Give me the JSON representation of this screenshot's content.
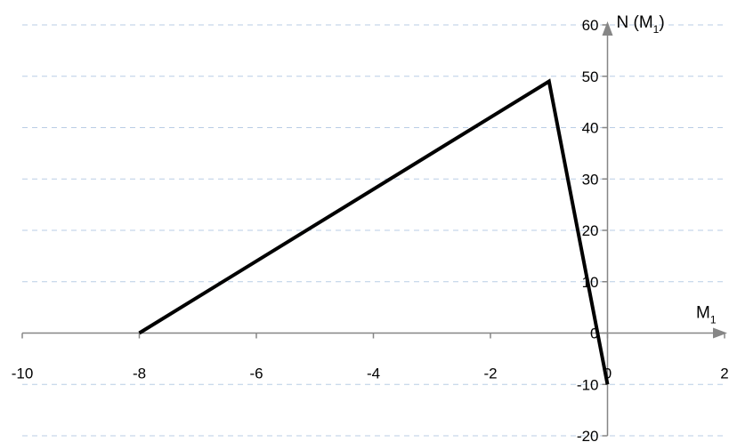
{
  "chart_data": {
    "type": "line",
    "title": "",
    "xlabel": "M",
    "xlabel_sub": "1",
    "ylabel": "N (M",
    "ylabel_sub": "1",
    "ylabel_close": ")",
    "xlim": [
      -10,
      2
    ],
    "ylim": [
      -20,
      60
    ],
    "x_ticks": [
      -10,
      -8,
      -6,
      -4,
      -2,
      0,
      2
    ],
    "y_ticks": [
      -20,
      -10,
      0,
      10,
      20,
      30,
      40,
      50,
      60
    ],
    "grid": "horizontal dashed",
    "series": [
      {
        "color": "#000000",
        "x": [
          -8,
          -1,
          0
        ],
        "y": [
          0,
          49,
          -10
        ]
      }
    ],
    "colors": {
      "grid": "#b9cde5",
      "axis": "#868686",
      "line": "#000000"
    }
  }
}
